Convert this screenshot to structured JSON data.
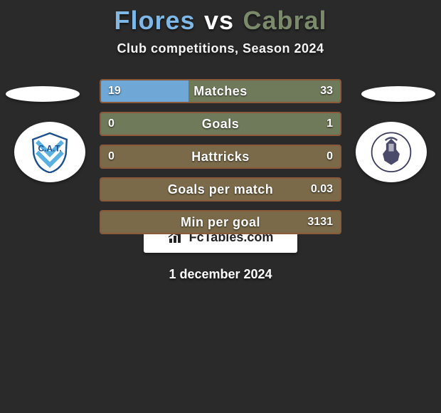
{
  "title": {
    "player1": "Flores",
    "vs": "vs",
    "player2": "Cabral",
    "player1_color": "#7fb8e6",
    "player2_color": "#7a8a6b"
  },
  "subtitle": "Club competitions, Season 2024",
  "date": "1 december 2024",
  "brand": "FcTables.com",
  "colors": {
    "left_seg": "#6fa8d6",
    "right_seg": "#6f7a5a",
    "bar_border": "#8a5a3a",
    "neutral_bar": "#7a6a4a",
    "background": "#2a2a2a"
  },
  "stats": [
    {
      "label": "Matches",
      "left_val": "19",
      "right_val": "33",
      "left_pct": 36.5,
      "right_pct": 63.5,
      "mode": "split"
    },
    {
      "label": "Goals",
      "left_val": "0",
      "right_val": "1",
      "left_pct": 0,
      "right_pct": 100,
      "mode": "split"
    },
    {
      "label": "Hattricks",
      "left_val": "0",
      "right_val": "0",
      "left_pct": 0,
      "right_pct": 0,
      "mode": "neutral"
    },
    {
      "label": "Goals per match",
      "left_val": "",
      "right_val": "0.03",
      "left_pct": 0,
      "right_pct": 100,
      "mode": "neutral"
    },
    {
      "label": "Min per goal",
      "left_val": "",
      "right_val": "3131",
      "left_pct": 0,
      "right_pct": 100,
      "mode": "neutral"
    }
  ]
}
